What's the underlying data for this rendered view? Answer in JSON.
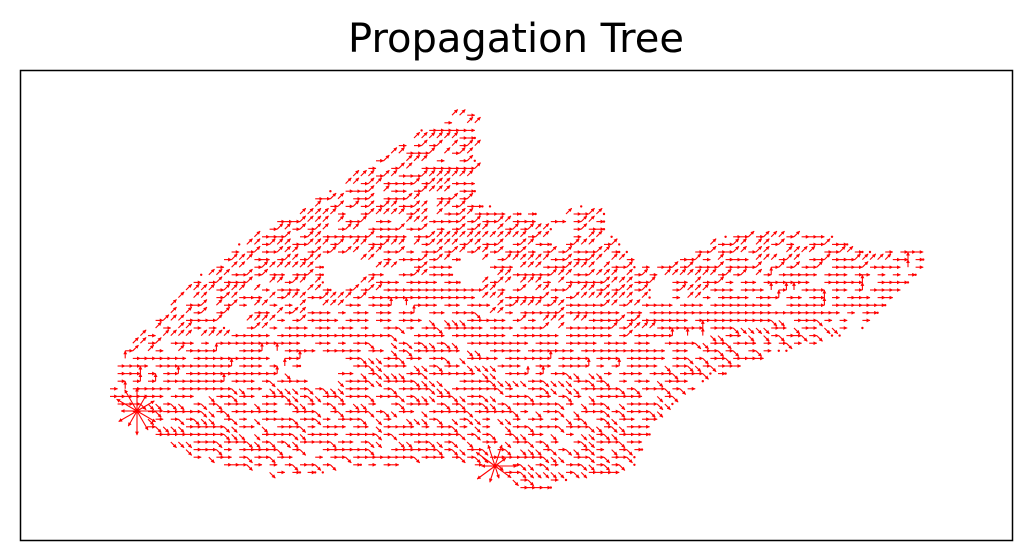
{
  "title": "Propagation Tree",
  "colors": {
    "edge": "#ff0000",
    "frame": "#000000",
    "background": "#ffffff"
  },
  "diagram": {
    "type": "directed-tree",
    "style": "small red arrows on a lattice",
    "roots": [
      "left-hub",
      "lower-right-hub"
    ]
  }
}
